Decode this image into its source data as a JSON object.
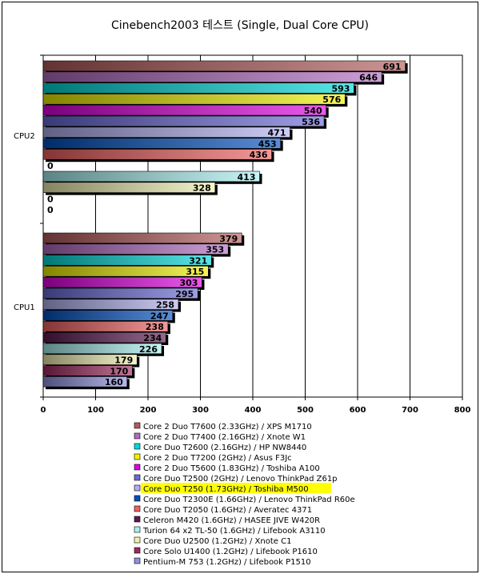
{
  "chart_data": {
    "type": "bar",
    "orientation": "horizontal",
    "title": "Cinebench2003 테스트 (Single, Dual Core CPU)",
    "categories": [
      "CPU2",
      "CPU1"
    ],
    "xlim": [
      0,
      800
    ],
    "xticks": [
      0,
      100,
      200,
      300,
      400,
      500,
      600,
      700,
      800
    ],
    "grid": true,
    "legend_position": "bottom",
    "highlighted_series": "Core Duo T250 (1.73GHz) / Toshiba M500",
    "highlight_color": "#ffff00",
    "series": [
      {
        "name": "Core 2 Duo T7600 (2.33GHz) / XPS M1710",
        "color": "#b45a5a",
        "values": [
          691,
          379
        ]
      },
      {
        "name": "Core 2 Duo T7400 (2.16GHz) / Xnote W1",
        "color": "#b06cc0",
        "values": [
          646,
          353
        ]
      },
      {
        "name": "Core Duo T2600 (2.16GHz) / HP NW8440",
        "color": "#00d8d8",
        "values": [
          593,
          321
        ]
      },
      {
        "name": "Core 2 Duo T7200 (2GHz) / Asus F3Jc",
        "color": "#f0f000",
        "values": [
          576,
          315
        ]
      },
      {
        "name": "Core 2 Duo T5600 (1.83GHz) / Toshiba A100",
        "color": "#e000e0",
        "values": [
          540,
          303
        ]
      },
      {
        "name": "Core Duo T2500 (2GHz) / Lenovo ThinkPad Z61p",
        "color": "#6a6ad8",
        "values": [
          536,
          295
        ]
      },
      {
        "name": "Core Duo T250 (1.73GHz) / Toshiba M500",
        "color": "#b0b0f0",
        "values": [
          471,
          258
        ]
      },
      {
        "name": "Core Duo T2300E (1.66GHz) / Lenovo ThinkPad R60e",
        "color": "#0050c0",
        "values": [
          453,
          247
        ]
      },
      {
        "name": "Core Duo T2050 (1.6GHz) / Averatec 4371",
        "color": "#f06060",
        "values": [
          436,
          238
        ]
      },
      {
        "name": "Celeron M420 (1.6GHz) / HASEE JIVE W420R",
        "color": "#5a1a50",
        "values": [
          0,
          234
        ]
      },
      {
        "name": "Turion 64 x2 TL-50 (1.6GHz) / Lifebook A3110",
        "color": "#a8f0f0",
        "values": [
          413,
          226
        ]
      },
      {
        "name": "Core Duo U2500 (1.2GHz) / Xnote C1",
        "color": "#f0f0b0",
        "values": [
          328,
          179
        ]
      },
      {
        "name": "Core Solo U1400 (1.2GHz) / Lifebook P1610",
        "color": "#a02a60",
        "values": [
          0,
          170
        ]
      },
      {
        "name": "Pentium-M 753 (1.2GHz) / Lifebook P1510",
        "color": "#9090e0",
        "values": [
          0,
          160
        ]
      }
    ]
  }
}
